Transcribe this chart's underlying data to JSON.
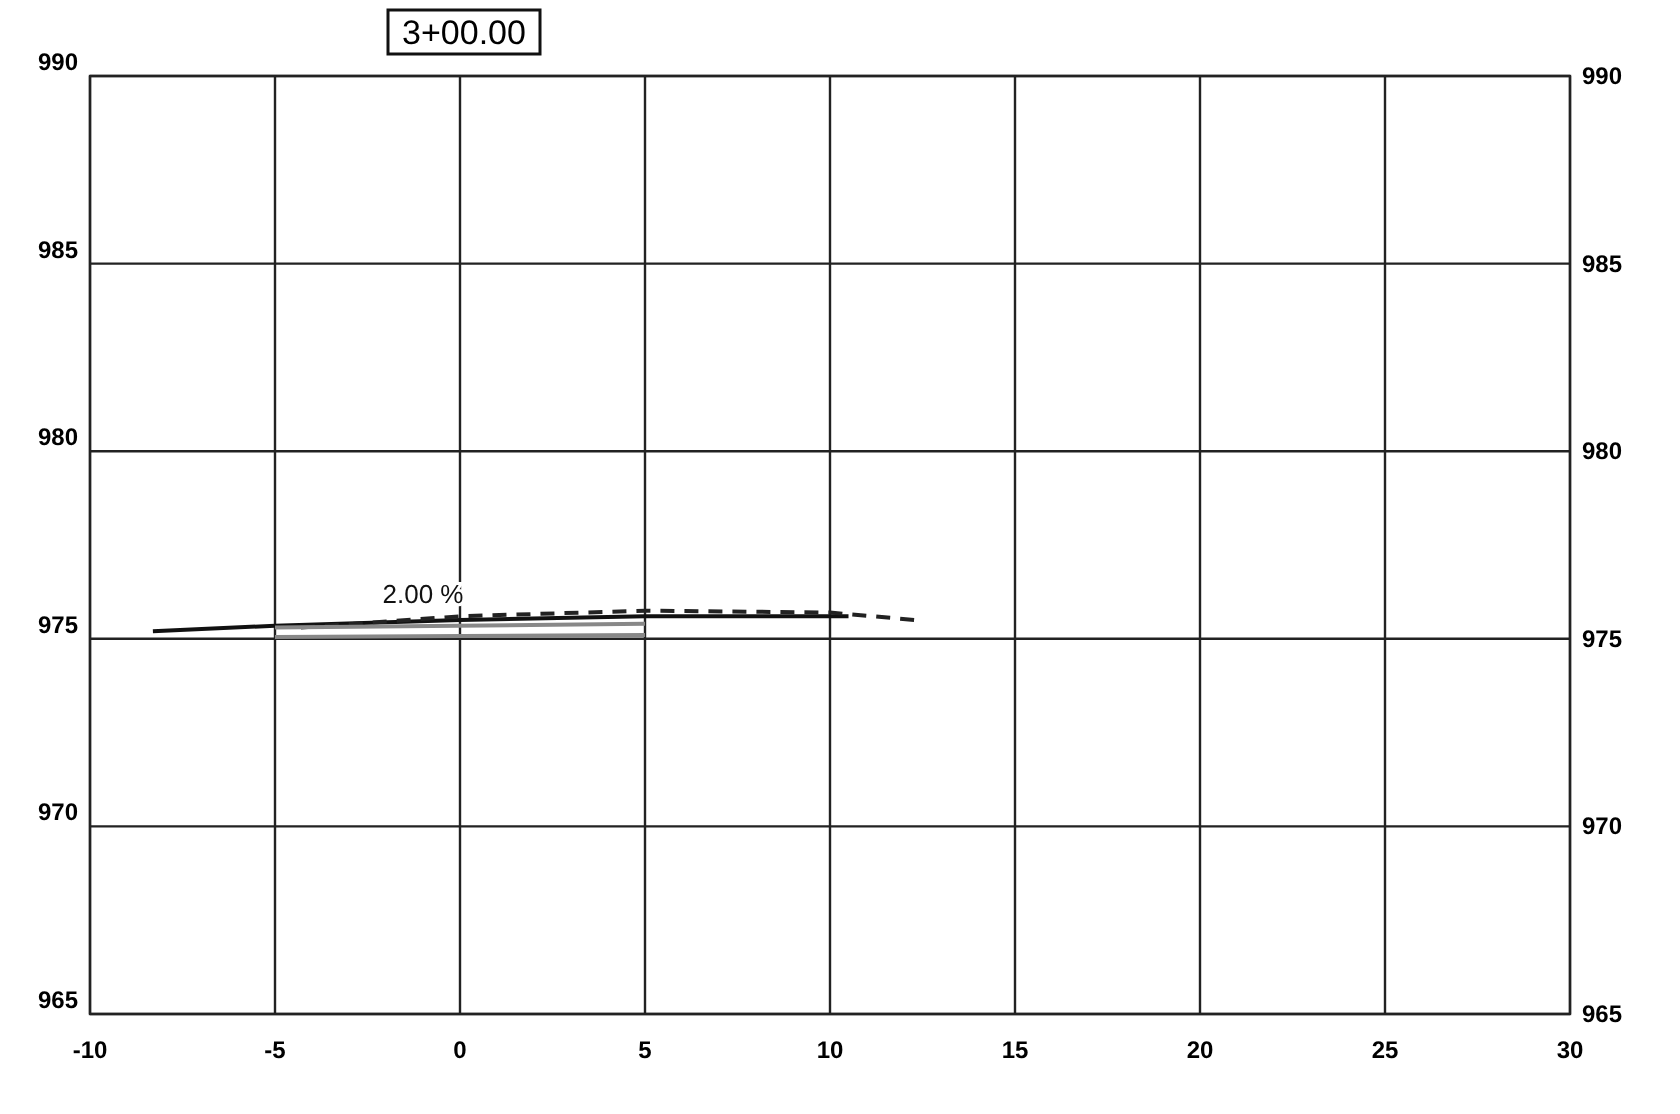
{
  "chart_data": {
    "type": "line",
    "title": "3+00.00",
    "xlim": [
      -10,
      30
    ],
    "xticks": [
      -10,
      -5,
      0,
      5,
      10,
      15,
      20,
      25,
      30
    ],
    "ylim": [
      965,
      990
    ],
    "yticks": [
      965,
      970,
      975,
      980,
      985,
      990
    ],
    "y2lim": [
      965,
      990
    ],
    "y2ticks": [
      965,
      970,
      975,
      980,
      985,
      990
    ],
    "grid": true,
    "series": [
      {
        "color": "#111111",
        "line_style": "solid",
        "x": [
          -8.3,
          -5,
          0,
          5,
          10.5
        ],
        "values": [
          975.2,
          975.35,
          975.5,
          975.6,
          975.6
        ]
      },
      {
        "color": "#222222",
        "line_style": "dashed",
        "x": [
          -4.3,
          0,
          5,
          10,
          12.3
        ],
        "values": [
          975.3,
          975.6,
          975.75,
          975.7,
          975.5
        ]
      },
      {
        "color": "#888888",
        "line_style": "solid",
        "x": [
          -5,
          5
        ],
        "values": [
          975.3,
          975.4
        ]
      },
      {
        "color": "#888888",
        "line_style": "solid",
        "x": [
          -5,
          5
        ],
        "values": [
          975.05,
          975.1
        ]
      }
    ],
    "annotations": [
      "2.00 %"
    ]
  }
}
